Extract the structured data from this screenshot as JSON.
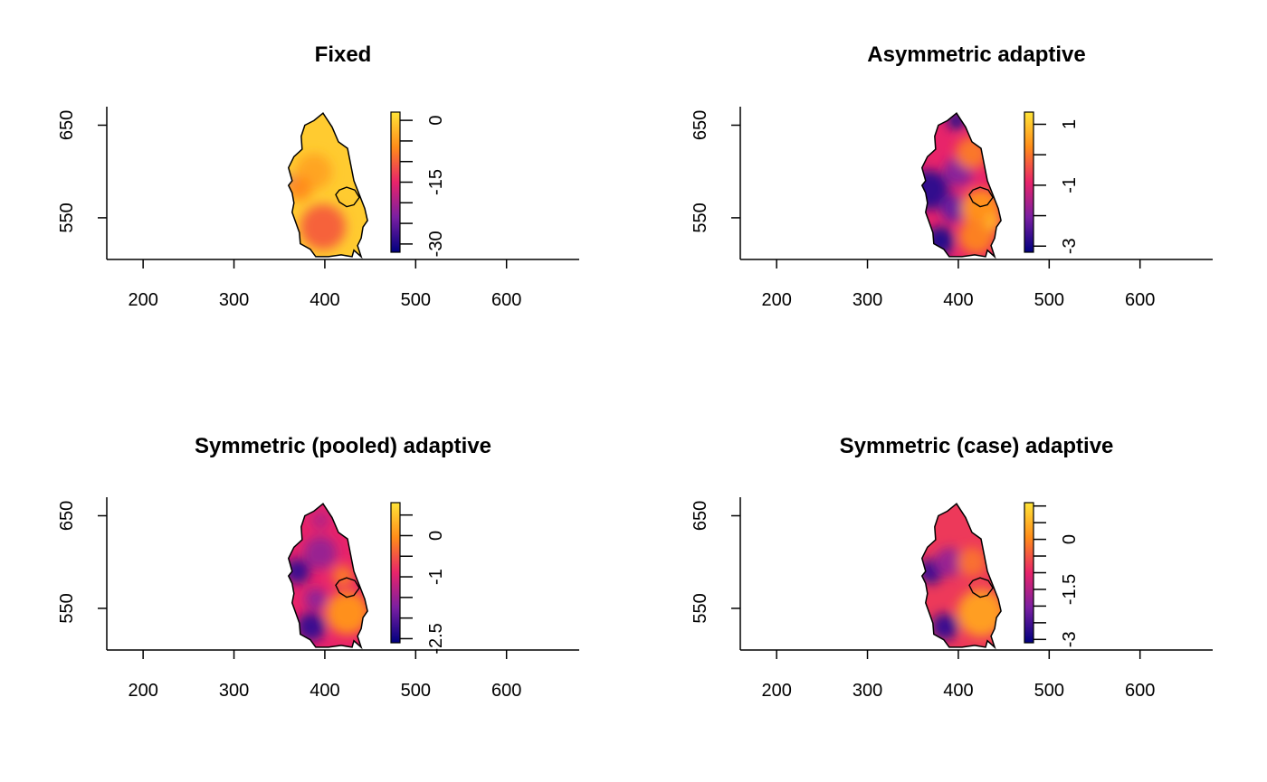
{
  "palette": [
    "#00007f",
    "#7a1fa2",
    "#e8246a",
    "#ff8c1a",
    "#ffe438"
  ],
  "chart_data": [
    {
      "type": "heatmap",
      "title": "Fixed",
      "xlabel": "",
      "ylabel": "",
      "xlim": [
        160,
        680
      ],
      "ylim": [
        505,
        670
      ],
      "x_ticks": [
        200,
        300,
        400,
        500,
        600
      ],
      "y_ticks": [
        550,
        650
      ],
      "legend": {
        "position": "right",
        "range": [
          -32,
          2
        ],
        "ticks": [
          0,
          -15,
          -30
        ],
        "tick_labels": [
          "0",
          "-15",
          "-30"
        ],
        "minor_step": 5
      },
      "field_level": 0.93,
      "low_values": [
        {
          "x": 362,
          "y": 590,
          "r": 5,
          "level": 0.15
        },
        {
          "x": 398,
          "y": 540,
          "r": 25,
          "level": 0.65
        },
        {
          "x": 388,
          "y": 600,
          "r": 20,
          "level": 0.82
        },
        {
          "x": 372,
          "y": 582,
          "r": 14,
          "level": 0.75
        }
      ],
      "grid": false
    },
    {
      "type": "heatmap",
      "title": "Asymmetric adaptive",
      "xlabel": "",
      "ylabel": "",
      "xlim": [
        160,
        680
      ],
      "ylim": [
        505,
        670
      ],
      "x_ticks": [
        200,
        300,
        400,
        500,
        600
      ],
      "y_ticks": [
        550,
        650
      ],
      "legend": {
        "position": "right",
        "range": [
          -3.2,
          1.4
        ],
        "ticks": [
          1,
          -1,
          -3
        ],
        "tick_labels": [
          "1",
          "-1",
          "-3"
        ],
        "minor_step": 1
      },
      "field_level": 0.5,
      "low_values": [
        {
          "x": 398,
          "y": 655,
          "r": 10,
          "level": 0.08
        },
        {
          "x": 368,
          "y": 580,
          "r": 22,
          "level": 0.1
        },
        {
          "x": 380,
          "y": 525,
          "r": 16,
          "level": 0.08
        },
        {
          "x": 395,
          "y": 560,
          "r": 15,
          "level": 0.22
        },
        {
          "x": 400,
          "y": 600,
          "r": 16,
          "level": 0.28
        },
        {
          "x": 425,
          "y": 560,
          "r": 22,
          "level": 0.76
        },
        {
          "x": 420,
          "y": 530,
          "r": 20,
          "level": 0.72
        },
        {
          "x": 415,
          "y": 620,
          "r": 18,
          "level": 0.7
        },
        {
          "x": 438,
          "y": 545,
          "r": 10,
          "level": 0.85
        }
      ],
      "grid": false
    },
    {
      "type": "heatmap",
      "title": "Symmetric (pooled) adaptive",
      "xlabel": "",
      "ylabel": "",
      "xlim": [
        160,
        680
      ],
      "ylim": [
        505,
        670
      ],
      "x_ticks": [
        200,
        300,
        400,
        500,
        600
      ],
      "y_ticks": [
        550,
        650
      ],
      "legend": {
        "position": "right",
        "range": [
          -2.6,
          0.8
        ],
        "ticks": [
          0,
          -1,
          -2.5
        ],
        "tick_labels": [
          "0",
          "-1",
          "-2.5"
        ],
        "minor_step": 0.5
      },
      "field_level": 0.5,
      "low_values": [
        {
          "x": 370,
          "y": 590,
          "r": 14,
          "level": 0.12
        },
        {
          "x": 385,
          "y": 530,
          "r": 16,
          "level": 0.12
        },
        {
          "x": 395,
          "y": 610,
          "r": 18,
          "level": 0.32
        },
        {
          "x": 390,
          "y": 560,
          "r": 12,
          "level": 0.3
        },
        {
          "x": 425,
          "y": 545,
          "r": 24,
          "level": 0.76
        },
        {
          "x": 420,
          "y": 585,
          "r": 12,
          "level": 0.7
        },
        {
          "x": 395,
          "y": 645,
          "r": 10,
          "level": 0.38
        }
      ],
      "grid": false
    },
    {
      "type": "heatmap",
      "title": "Symmetric (case) adaptive",
      "xlabel": "",
      "ylabel": "",
      "xlim": [
        160,
        680
      ],
      "ylim": [
        505,
        670
      ],
      "x_ticks": [
        200,
        300,
        400,
        500,
        600
      ],
      "y_ticks": [
        550,
        650
      ],
      "legend": {
        "position": "right",
        "range": [
          -3.1,
          1.1
        ],
        "ticks": [
          0,
          -1.5,
          -3
        ],
        "tick_labels": [
          "0",
          "-1.5",
          "-3"
        ],
        "minor_step": 0.5
      },
      "field_level": 0.55,
      "low_values": [
        {
          "x": 370,
          "y": 590,
          "r": 14,
          "level": 0.12
        },
        {
          "x": 385,
          "y": 530,
          "r": 15,
          "level": 0.12
        },
        {
          "x": 390,
          "y": 600,
          "r": 16,
          "level": 0.32
        },
        {
          "x": 425,
          "y": 545,
          "r": 26,
          "level": 0.8
        },
        {
          "x": 415,
          "y": 600,
          "r": 16,
          "level": 0.68
        }
      ],
      "grid": false
    }
  ]
}
